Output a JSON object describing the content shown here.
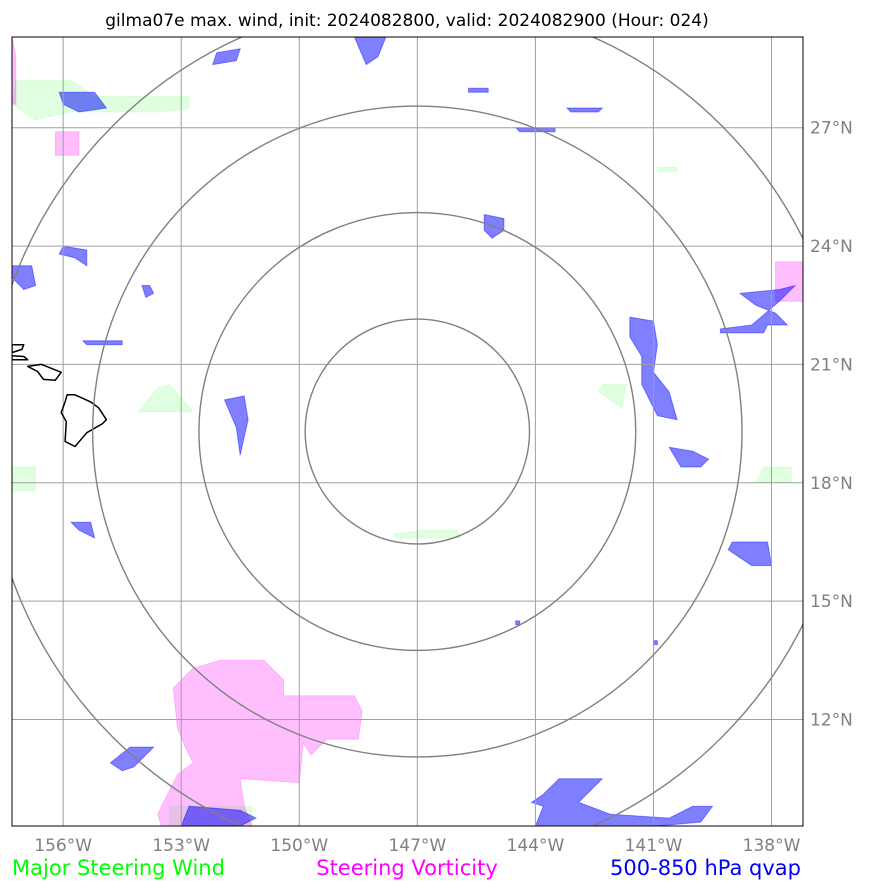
{
  "chart_data": {
    "type": "map",
    "title": "gilma07e max. wind, init: 2024082800, valid: 2024082900 (Hour: 024)",
    "x_ticks": [
      {
        "lon": -156,
        "label": "156°W"
      },
      {
        "lon": -153,
        "label": "153°W"
      },
      {
        "lon": -150,
        "label": "150°W"
      },
      {
        "lon": -147,
        "label": "147°W"
      },
      {
        "lon": -144,
        "label": "144°W"
      },
      {
        "lon": -141,
        "label": "141°W"
      },
      {
        "lon": -138,
        "label": "138°W"
      }
    ],
    "y_ticks": [
      {
        "lat": 27,
        "label": "27°N"
      },
      {
        "lat": 24,
        "label": "24°N"
      },
      {
        "lat": 21,
        "label": "21°N"
      },
      {
        "lat": 18,
        "label": "18°N"
      },
      {
        "lat": 15,
        "label": "15°N"
      },
      {
        "lat": 12,
        "label": "12°N"
      }
    ],
    "xlim": [
      -157.3,
      -137.2
    ],
    "ylim": [
      9.3,
      29.3
    ],
    "grid": true,
    "range_rings": {
      "center": {
        "lon": -147.0,
        "lat": 19.3
      },
      "radii_deg": [
        2.85,
        5.55,
        8.25,
        10.95
      ]
    },
    "legend": [
      {
        "label": "Major Steering Wind",
        "color": "#00ff00"
      },
      {
        "label": "Steering Vorticity",
        "color": "#ff00ff"
      },
      {
        "label": "500-850 hPa qvap",
        "color": "#0000ff"
      }
    ],
    "layers": {
      "qvap": {
        "color": "#0000ff",
        "opacity": 0.5,
        "regions": [
          [
            [
              -148.6,
              29.3
            ],
            [
              -147.8,
              29.3
            ],
            [
              -148.0,
              28.8
            ],
            [
              -148.3,
              28.6
            ]
          ],
          [
            [
              -152.1,
              28.9
            ],
            [
              -151.5,
              29.0
            ],
            [
              -151.6,
              28.7
            ],
            [
              -152.2,
              28.6
            ]
          ],
          [
            [
              -156.1,
              27.9
            ],
            [
              -155.2,
              27.9
            ],
            [
              -154.9,
              27.5
            ],
            [
              -155.6,
              27.4
            ],
            [
              -156.0,
              27.6
            ]
          ],
          [
            [
              -143.2,
              27.5
            ],
            [
              -142.3,
              27.5
            ],
            [
              -142.4,
              27.4
            ],
            [
              -143.1,
              27.4
            ]
          ],
          [
            [
              -144.5,
              27.0
            ],
            [
              -143.5,
              27.0
            ],
            [
              -143.5,
              26.9
            ],
            [
              -144.4,
              26.9
            ]
          ],
          [
            [
              -145.7,
              28.0
            ],
            [
              -145.2,
              28.0
            ],
            [
              -145.2,
              27.9
            ],
            [
              -145.7,
              27.9
            ]
          ],
          [
            [
              -145.3,
              24.8
            ],
            [
              -144.8,
              24.7
            ],
            [
              -144.8,
              24.4
            ],
            [
              -145.1,
              24.2
            ],
            [
              -145.3,
              24.4
            ]
          ],
          [
            [
              -156.0,
              24.0
            ],
            [
              -155.4,
              23.9
            ],
            [
              -155.4,
              23.5
            ],
            [
              -155.7,
              23.7
            ],
            [
              -156.1,
              23.8
            ]
          ],
          [
            [
              -157.3,
              23.5
            ],
            [
              -156.8,
              23.5
            ],
            [
              -156.7,
              23.0
            ],
            [
              -157.0,
              22.9
            ],
            [
              -157.3,
              23.2
            ]
          ],
          [
            [
              -154.0,
              23.0
            ],
            [
              -153.8,
              23.0
            ],
            [
              -153.7,
              22.8
            ],
            [
              -153.9,
              22.7
            ]
          ],
          [
            [
              -155.5,
              21.6
            ],
            [
              -154.5,
              21.6
            ],
            [
              -154.5,
              21.5
            ],
            [
              -155.4,
              21.5
            ]
          ],
          [
            [
              -141.6,
              22.2
            ],
            [
              -141.0,
              22.1
            ],
            [
              -140.9,
              21.5
            ],
            [
              -141.0,
              20.8
            ],
            [
              -140.6,
              20.3
            ],
            [
              -140.4,
              19.6
            ],
            [
              -140.9,
              19.7
            ],
            [
              -141.3,
              20.5
            ],
            [
              -141.3,
              21.2
            ],
            [
              -141.6,
              21.7
            ]
          ],
          [
            [
              -138.1,
              22.0
            ],
            [
              -137.6,
              22.0
            ],
            [
              -137.9,
              22.3
            ],
            [
              -138.4,
              22.5
            ],
            [
              -138.8,
              22.8
            ],
            [
              -137.8,
              22.9
            ],
            [
              -137.4,
              23.0
            ],
            [
              -137.8,
              22.6
            ],
            [
              -138.5,
              22.0
            ],
            [
              -139.3,
              21.9
            ],
            [
              -139.3,
              21.8
            ],
            [
              -138.2,
              21.8
            ]
          ],
          [
            [
              -151.9,
              20.1
            ],
            [
              -151.4,
              20.2
            ],
            [
              -151.3,
              19.6
            ],
            [
              -151.5,
              18.7
            ],
            [
              -151.6,
              19.4
            ]
          ],
          [
            [
              -140.6,
              18.9
            ],
            [
              -140.0,
              18.8
            ],
            [
              -139.6,
              18.6
            ],
            [
              -139.8,
              18.4
            ],
            [
              -140.3,
              18.4
            ]
          ],
          [
            [
              -155.8,
              17.0
            ],
            [
              -155.3,
              17.0
            ],
            [
              -155.2,
              16.6
            ],
            [
              -155.6,
              16.8
            ]
          ],
          [
            [
              -139.0,
              16.5
            ],
            [
              -138.1,
              16.5
            ],
            [
              -138.0,
              15.9
            ],
            [
              -138.5,
              15.9
            ],
            [
              -139.1,
              16.3
            ]
          ],
          [
            [
              -154.3,
              11.3
            ],
            [
              -153.7,
              11.3
            ],
            [
              -154.2,
              10.8
            ],
            [
              -154.5,
              10.7
            ],
            [
              -154.8,
              10.9
            ]
          ],
          [
            [
              -143.4,
              10.5
            ],
            [
              -142.3,
              10.5
            ],
            [
              -142.9,
              9.9
            ],
            [
              -142.1,
              9.6
            ],
            [
              -140.6,
              9.5
            ],
            [
              -140.0,
              9.8
            ],
            [
              -139.5,
              9.8
            ],
            [
              -139.8,
              9.4
            ],
            [
              -140.9,
              9.3
            ],
            [
              -144.0,
              9.3
            ],
            [
              -143.8,
              9.8
            ],
            [
              -144.1,
              9.9
            ],
            [
              -143.8,
              10.1
            ]
          ],
          [
            [
              -152.8,
              9.8
            ],
            [
              -151.5,
              9.7
            ],
            [
              -151.1,
              9.5
            ],
            [
              -151.5,
              9.3
            ],
            [
              -153.0,
              9.3
            ]
          ],
          [
            [
              -144.5,
              14.5
            ],
            [
              -144.4,
              14.5
            ],
            [
              -144.4,
              14.4
            ],
            [
              -144.5,
              14.4
            ]
          ],
          [
            [
              -141.0,
              14.0
            ],
            [
              -140.9,
              14.0
            ],
            [
              -140.9,
              13.9
            ],
            [
              -141.0,
              13.9
            ]
          ]
        ]
      },
      "vorticity": {
        "color": "#ff00ff",
        "opacity": 0.25,
        "regions": [
          [
            [
              -156.2,
              26.9
            ],
            [
              -155.6,
              26.9
            ],
            [
              -155.6,
              26.3
            ],
            [
              -156.2,
              26.3
            ]
          ],
          [
            [
              -157.3,
              29.3
            ],
            [
              -157.2,
              28.8
            ],
            [
              -157.2,
              27.6
            ],
            [
              -157.3,
              27.6
            ]
          ],
          [
            [
              -137.9,
              23.6
            ],
            [
              -136.9,
              23.6
            ],
            [
              -136.9,
              22.6
            ],
            [
              -137.9,
              22.6
            ]
          ],
          [
            [
              -152.0,
              13.5
            ],
            [
              -150.9,
              13.5
            ],
            [
              -150.4,
              13.0
            ],
            [
              -150.4,
              12.6
            ],
            [
              -149.2,
              12.6
            ],
            [
              -149.0,
              12.6
            ],
            [
              -148.6,
              12.6
            ],
            [
              -148.4,
              12.2
            ],
            [
              -148.5,
              11.5
            ],
            [
              -149.3,
              11.5
            ],
            [
              -149.7,
              11.1
            ],
            [
              -149.9,
              11.4
            ],
            [
              -150.0,
              10.4
            ],
            [
              -151.5,
              10.5
            ],
            [
              -151.4,
              9.8
            ],
            [
              -151.2,
              9.3
            ],
            [
              -153.5,
              9.3
            ],
            [
              -153.6,
              9.6
            ],
            [
              -153.1,
              10.6
            ],
            [
              -152.7,
              10.9
            ],
            [
              -152.9,
              11.3
            ],
            [
              -153.1,
              11.8
            ],
            [
              -153.2,
              12.8
            ],
            [
              -152.7,
              13.3
            ]
          ]
        ]
      },
      "wind": {
        "color": "#00ff00",
        "opacity": 0.12,
        "regions": [
          [
            [
              -157.2,
              28.2
            ],
            [
              -155.8,
              28.2
            ],
            [
              -155.2,
              27.8
            ],
            [
              -154.2,
              27.8
            ],
            [
              -152.8,
              27.8
            ],
            [
              -152.8,
              27.5
            ],
            [
              -153.5,
              27.4
            ],
            [
              -155.8,
              27.4
            ],
            [
              -156.7,
              27.2
            ],
            [
              -157.3,
              27.6
            ]
          ],
          [
            [
              -153.6,
              20.4
            ],
            [
              -153.3,
              20.5
            ],
            [
              -152.7,
              19.8
            ],
            [
              -154.1,
              19.8
            ]
          ],
          [
            [
              -142.3,
              20.5
            ],
            [
              -141.7,
              20.5
            ],
            [
              -141.8,
              19.9
            ],
            [
              -142.4,
              20.3
            ]
          ],
          [
            [
              -157.3,
              18.4
            ],
            [
              -156.7,
              18.4
            ],
            [
              -156.7,
              17.8
            ],
            [
              -157.3,
              17.8
            ]
          ],
          [
            [
              -146.8,
              16.8
            ],
            [
              -146.0,
              16.8
            ],
            [
              -145.9,
              16.6
            ],
            [
              -146.8,
              16.6
            ],
            [
              -147.5,
              16.6
            ],
            [
              -147.6,
              16.7
            ]
          ],
          [
            [
              -138.2,
              18.4
            ],
            [
              -137.5,
              18.4
            ],
            [
              -137.5,
              18.0
            ],
            [
              -138.4,
              18.0
            ]
          ],
          [
            [
              -140.9,
              26.0
            ],
            [
              -140.4,
              26.0
            ],
            [
              -140.4,
              25.9
            ],
            [
              -140.9,
              25.9
            ]
          ],
          [
            [
              -153.3,
              9.8
            ],
            [
              -151.2,
              9.8
            ],
            [
              -151.2,
              9.3
            ],
            [
              -153.3,
              9.3
            ]
          ]
        ]
      }
    },
    "coastline": [
      [
        [
          -155.9,
          20.23
        ],
        [
          -155.7,
          20.23
        ],
        [
          -155.3,
          20.05
        ],
        [
          -155.1,
          19.9
        ],
        [
          -154.9,
          19.6
        ],
        [
          -155.0,
          19.5
        ],
        [
          -155.4,
          19.27
        ],
        [
          -155.7,
          18.92
        ],
        [
          -155.95,
          19.05
        ],
        [
          -155.92,
          19.55
        ],
        [
          -156.05,
          19.78
        ],
        [
          -155.95,
          20.05
        ]
      ],
      [
        [
          -156.9,
          20.95
        ],
        [
          -156.55,
          21.0
        ],
        [
          -156.35,
          20.92
        ],
        [
          -156.05,
          20.8
        ],
        [
          -156.2,
          20.6
        ],
        [
          -156.5,
          20.62
        ],
        [
          -156.65,
          20.82
        ]
      ],
      [
        [
          -157.3,
          21.12
        ],
        [
          -156.9,
          21.12
        ],
        [
          -157.0,
          21.2
        ],
        [
          -157.3,
          21.22
        ]
      ],
      [
        [
          -157.3,
          21.5
        ],
        [
          -157.0,
          21.5
        ],
        [
          -157.05,
          21.38
        ],
        [
          -157.3,
          21.3
        ]
      ]
    ]
  }
}
